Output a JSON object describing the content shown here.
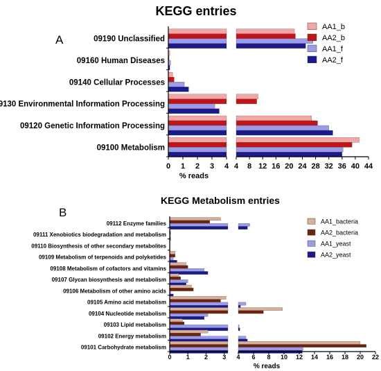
{
  "chart_data": [
    {
      "type": "bar",
      "panel_label": "A",
      "title": "KEGG entries",
      "xlabel": "% reads",
      "orientation": "horizontal",
      "broken_axis": true,
      "xlim_segments": [
        [
          0,
          4
        ],
        [
          4,
          44
        ]
      ],
      "categories": [
        "09190 Unclassified",
        "09160 Human Diseases",
        "09140 Cellular Processes",
        "09130 Environmental Information Processing",
        "09120 Genetic Information Processing",
        "09100 Metabolism"
      ],
      "x_ticks": [
        [
          0,
          1,
          2,
          3,
          4
        ],
        [
          4,
          8,
          12,
          16,
          20,
          24,
          28,
          32,
          36,
          40,
          44
        ]
      ],
      "legend_position": "top-right",
      "series": [
        {
          "name": "AA1_b",
          "color": "#f4a6a6",
          "values": [
            21.6,
            0.1,
            0.3,
            10.6,
            26.8,
            41.2
          ]
        },
        {
          "name": "AA2_b",
          "color": "#c0141a",
          "values": [
            21.9,
            0.05,
            0.4,
            10.2,
            28.6,
            39.0
          ]
        },
        {
          "name": "AA1_f",
          "color": "#9b9bea",
          "values": [
            27.2,
            0.15,
            1.1,
            3.2,
            32.0,
            36.3
          ]
        },
        {
          "name": "AA2_f",
          "color": "#1a1a8c",
          "values": [
            25.0,
            0.1,
            1.4,
            3.5,
            33.2,
            36.0
          ]
        }
      ]
    },
    {
      "type": "bar",
      "panel_label": "B",
      "title": "KEGG Metabolism entries",
      "xlabel": "% reads",
      "orientation": "horizontal",
      "broken_axis": true,
      "xlim_segments": [
        [
          0,
          3.2
        ],
        [
          4,
          22
        ]
      ],
      "categories": [
        "09112 Enzyme families",
        "09111 Xenobiotics biodegradation and metabolism",
        "09110 Biosynthesis of other secondary metabolites",
        "09109 Metabolism of terpenoids and polyketides",
        "09108 Metabolism of cofactors and vitamins",
        "09107 Glycan biosynthesis and metabolism",
        "09106 Metabolism of other amino acids",
        "09105 Amino acid metabolism",
        "09104 Nucleotide metabolism",
        "09103 Lipid metabolism",
        "09102 Energy metabolism",
        "09101 Carbohydrate metabolism"
      ],
      "x_ticks": [
        [
          0,
          1,
          2,
          3
        ],
        [
          4,
          6,
          8,
          10,
          12,
          14,
          16,
          18,
          20,
          22
        ]
      ],
      "legend_position": "top-right",
      "series": [
        {
          "name": "AA1_bacteria",
          "color": "#d8b09a",
          "values": [
            2.8,
            0.05,
            0.02,
            0.3,
            0.9,
            0.5,
            1.2,
            3.1,
            9.8,
            0.7,
            2.1,
            20.0
          ]
        },
        {
          "name": "AA2_bacteria",
          "color": "#6b2410",
          "values": [
            2.2,
            0.05,
            0.02,
            0.3,
            1.0,
            0.6,
            1.3,
            2.8,
            7.3,
            0.8,
            1.7,
            20.8
          ]
        },
        {
          "name": "AA1_yeast",
          "color": "#9b9bea",
          "values": [
            5.5,
            0.05,
            0.02,
            0.2,
            1.9,
            1.0,
            0.05,
            5.0,
            2.1,
            4.1,
            5.0,
            12.5
          ]
        },
        {
          "name": "AA2_yeast",
          "color": "#1a1a8c",
          "values": [
            5.2,
            0.05,
            0.02,
            0.4,
            2.1,
            0.9,
            0.2,
            4.3,
            1.9,
            4.2,
            5.2,
            12.4
          ]
        }
      ]
    }
  ]
}
